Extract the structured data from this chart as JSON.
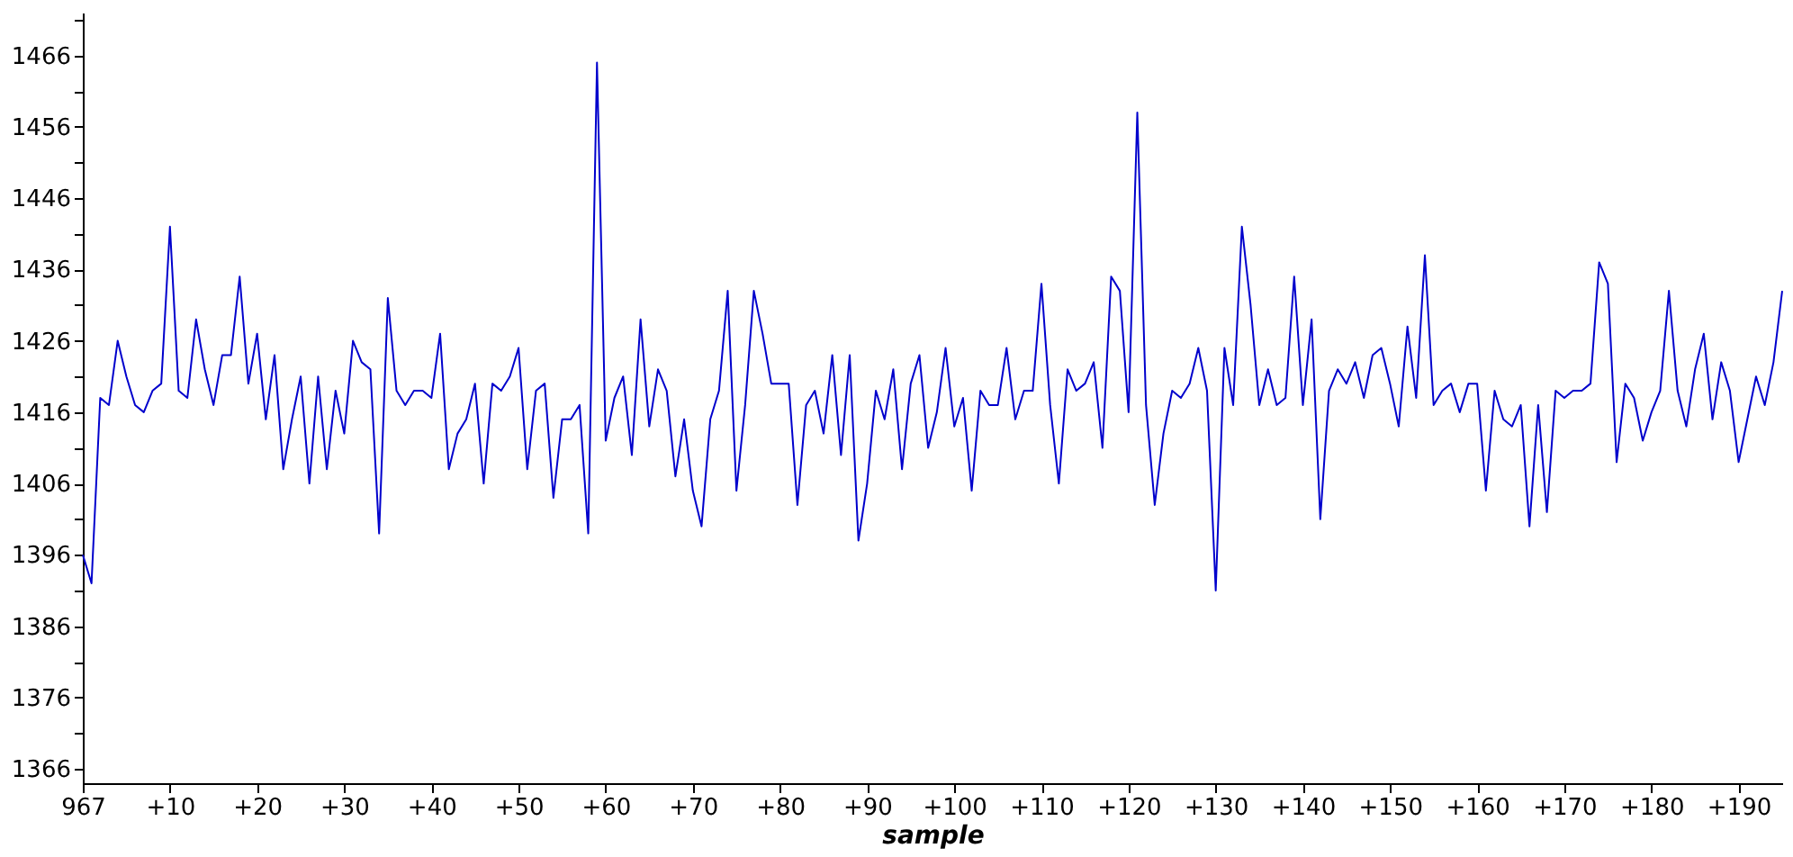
{
  "chart_data": {
    "type": "line",
    "xlabel": "sample",
    "categories": [
      "967",
      null,
      null,
      null,
      null,
      null,
      null,
      null,
      null,
      null,
      "+10",
      null,
      null,
      null,
      null,
      null,
      null,
      null,
      null,
      null,
      "+20",
      null,
      null,
      null,
      null,
      null,
      null,
      null,
      null,
      null,
      "+30",
      null,
      null,
      null,
      null,
      null,
      null,
      null,
      null,
      null,
      "+40",
      null,
      null,
      null,
      null,
      null,
      null,
      null,
      null,
      null,
      "+50",
      null,
      null,
      null,
      null,
      null,
      null,
      null,
      null,
      null,
      "+60",
      null,
      null,
      null,
      null,
      null,
      null,
      null,
      null,
      null,
      "+70",
      null,
      null,
      null,
      null,
      null,
      null,
      null,
      null,
      null,
      "+80",
      null,
      null,
      null,
      null,
      null,
      null,
      null,
      null,
      null,
      "+90",
      null,
      null,
      null,
      null,
      null,
      null,
      null,
      null,
      null,
      "+100",
      null,
      null,
      null,
      null,
      null,
      null,
      null,
      null,
      null,
      "+110",
      null,
      null,
      null,
      null,
      null,
      null,
      null,
      null,
      null,
      "+120",
      null,
      null,
      null,
      null,
      null,
      null,
      null,
      null,
      null,
      "+130",
      null,
      null,
      null,
      null,
      null,
      null,
      null,
      null,
      null,
      "+140",
      null,
      null,
      null,
      null,
      null,
      null,
      null,
      null,
      null,
      "+150",
      null,
      null,
      null,
      null,
      null,
      null,
      null,
      null,
      null,
      "+160",
      null,
      null,
      null,
      null,
      null,
      null,
      null,
      null,
      null,
      "+170",
      null,
      null,
      null,
      null,
      null,
      null,
      null,
      null,
      null,
      "+180",
      null,
      null,
      null,
      null,
      null,
      null,
      null,
      null,
      null,
      "+190",
      null,
      null,
      null,
      null,
      null
    ],
    "series": [
      {
        "color": "#0000cc",
        "values": [
          1396,
          1392,
          1418,
          1417,
          1426,
          1421,
          1417,
          1416,
          1419,
          1420,
          1442,
          1419,
          1418,
          1429,
          1422,
          1417,
          1424,
          1424,
          1435,
          1420,
          1427,
          1415,
          1424,
          1408,
          1415,
          1421,
          1406,
          1421,
          1408,
          1419,
          1413,
          1426,
          1423,
          1422,
          1399,
          1432,
          1419,
          1417,
          1419,
          1419,
          1418,
          1427,
          1408,
          1413,
          1415,
          1420,
          1406,
          1420,
          1419,
          1421,
          1425,
          1408,
          1419,
          1420,
          1404,
          1415,
          1415,
          1417,
          1399,
          1465,
          1412,
          1418,
          1421,
          1410,
          1429,
          1414,
          1422,
          1419,
          1407,
          1415,
          1405,
          1400,
          1415,
          1419,
          1433,
          1405,
          1417,
          1433,
          1427,
          1420,
          1420,
          1420,
          1403,
          1417,
          1419,
          1413,
          1424,
          1410,
          1424,
          1398,
          1406,
          1419,
          1415,
          1422,
          1408,
          1420,
          1424,
          1411,
          1416,
          1425,
          1414,
          1418,
          1405,
          1419,
          1417,
          1417,
          1425,
          1415,
          1419,
          1419,
          1434,
          1417,
          1406,
          1422,
          1419,
          1420,
          1423,
          1411,
          1435,
          1433,
          1416,
          1458,
          1417,
          1403,
          1413,
          1419,
          1418,
          1420,
          1425,
          1419,
          1391,
          1425,
          1417,
          1442,
          1431,
          1417,
          1422,
          1417,
          1418,
          1435,
          1417,
          1429,
          1401,
          1419,
          1422,
          1420,
          1423,
          1418,
          1424,
          1425,
          1420,
          1414,
          1428,
          1418,
          1438,
          1417,
          1419,
          1420,
          1416,
          1420,
          1420,
          1405,
          1419,
          1415,
          1414,
          1417,
          1400,
          1417,
          1402,
          1419,
          1418,
          1419,
          1419,
          1420,
          1437,
          1434,
          1409,
          1420,
          1418,
          1412,
          1416,
          1419,
          1433,
          1419,
          1414,
          1422,
          1427,
          1415,
          1423,
          1419,
          1409,
          1415,
          1421,
          1417,
          1423,
          1433
        ]
      }
    ],
    "ylim": [
      1364,
      1472
    ],
    "yticks": [
      1366,
      {
        "value": 1371,
        "label": null
      },
      1376,
      {
        "value": 1381,
        "label": null
      },
      1386,
      {
        "value": 1391,
        "label": null
      },
      1396,
      {
        "value": 1401,
        "label": null
      },
      1406,
      {
        "value": 1411,
        "label": null
      },
      1416,
      {
        "value": 1421,
        "label": null
      },
      1426,
      {
        "value": 1431,
        "label": null
      },
      1436,
      {
        "value": 1441,
        "label": null
      },
      1446,
      {
        "value": 1451,
        "label": null
      },
      1456,
      {
        "value": 1461,
        "label": null
      },
      1466,
      {
        "value": 1471,
        "label": null
      }
    ],
    "grid": false,
    "legend": false,
    "marker": "none",
    "line_style": "solid"
  }
}
